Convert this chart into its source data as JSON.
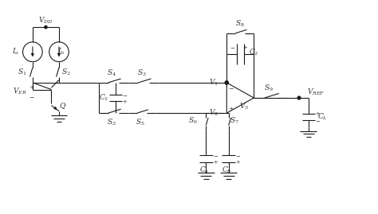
{
  "fig_width": 4.74,
  "fig_height": 2.69,
  "dpi": 100,
  "bg_color": "#ffffff",
  "line_color": "#1a1a1a",
  "line_width": 0.8,
  "text_color": "#333333",
  "font_size": 6.5,
  "xlim": [
    0,
    100
  ],
  "ylim": [
    0,
    56
  ]
}
